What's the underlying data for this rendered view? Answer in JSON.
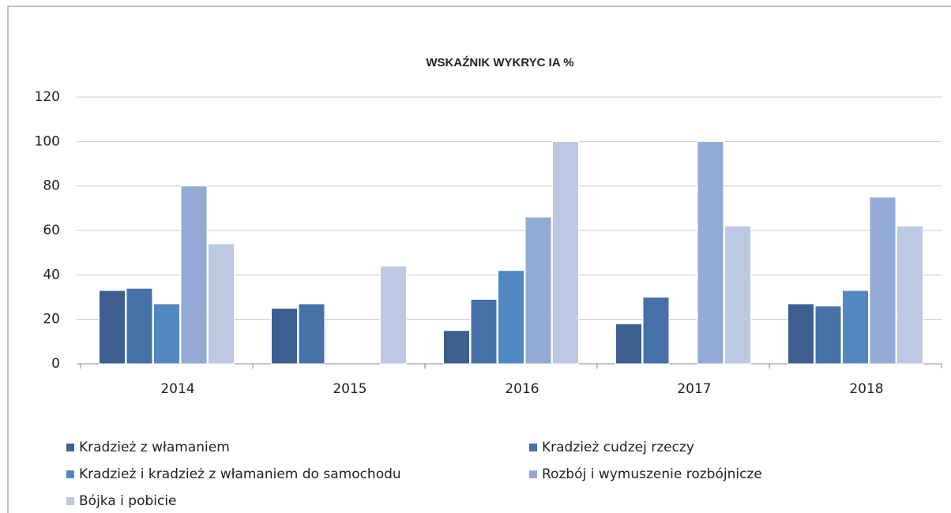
{
  "chart_data": {
    "type": "bar",
    "title": "WSKAŹNIK WYKRYC IA %",
    "categories": [
      "2014",
      "2015",
      "2016",
      "2017",
      "2018"
    ],
    "series": [
      {
        "name": "Kradzież z włamaniem",
        "color": "#3d5f8f",
        "values": [
          33,
          25,
          15,
          18,
          27
        ]
      },
      {
        "name": "Kradzież cudzej rzeczy",
        "color": "#4672a8",
        "values": [
          34,
          27,
          29,
          30,
          26
        ]
      },
      {
        "name": "Kradzież i kradzież z włamaniem do samochodu",
        "color": "#5288c2",
        "values": [
          27,
          null,
          42,
          null,
          33
        ]
      },
      {
        "name": "Rozbój i wymuszenie rozbójnicze",
        "color": "#93aad4",
        "values": [
          80,
          null,
          66,
          100,
          75
        ]
      },
      {
        "name": "Bójka i pobicie",
        "color": "#bcc9e3",
        "values": [
          54,
          44,
          100,
          62,
          62
        ]
      }
    ],
    "ylim": [
      0,
      120
    ],
    "yticks": [
      0,
      20,
      40,
      60,
      80,
      100,
      120
    ],
    "grid": true,
    "legend": "bottom"
  }
}
